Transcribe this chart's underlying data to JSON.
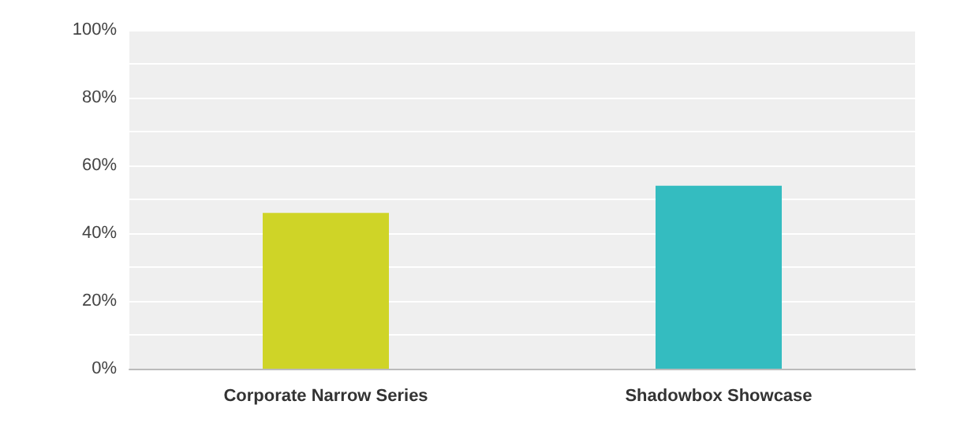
{
  "chart_data": {
    "type": "bar",
    "categories": [
      "Corporate Narrow Series",
      "Shadowbox Showcase"
    ],
    "values": [
      46,
      54
    ],
    "colors": [
      "#cfd427",
      "#34bcc0"
    ],
    "ylim": [
      0,
      100
    ],
    "yticks": [
      {
        "value": 0,
        "label": "0%"
      },
      {
        "value": 10,
        "label": null
      },
      {
        "value": 20,
        "label": "20%"
      },
      {
        "value": 30,
        "label": null
      },
      {
        "value": 40,
        "label": "40%"
      },
      {
        "value": 50,
        "label": null
      },
      {
        "value": 60,
        "label": "60%"
      },
      {
        "value": 70,
        "label": null
      },
      {
        "value": 80,
        "label": "80%"
      },
      {
        "value": 90,
        "label": null
      },
      {
        "value": 100,
        "label": "100%"
      }
    ],
    "grid": true
  }
}
